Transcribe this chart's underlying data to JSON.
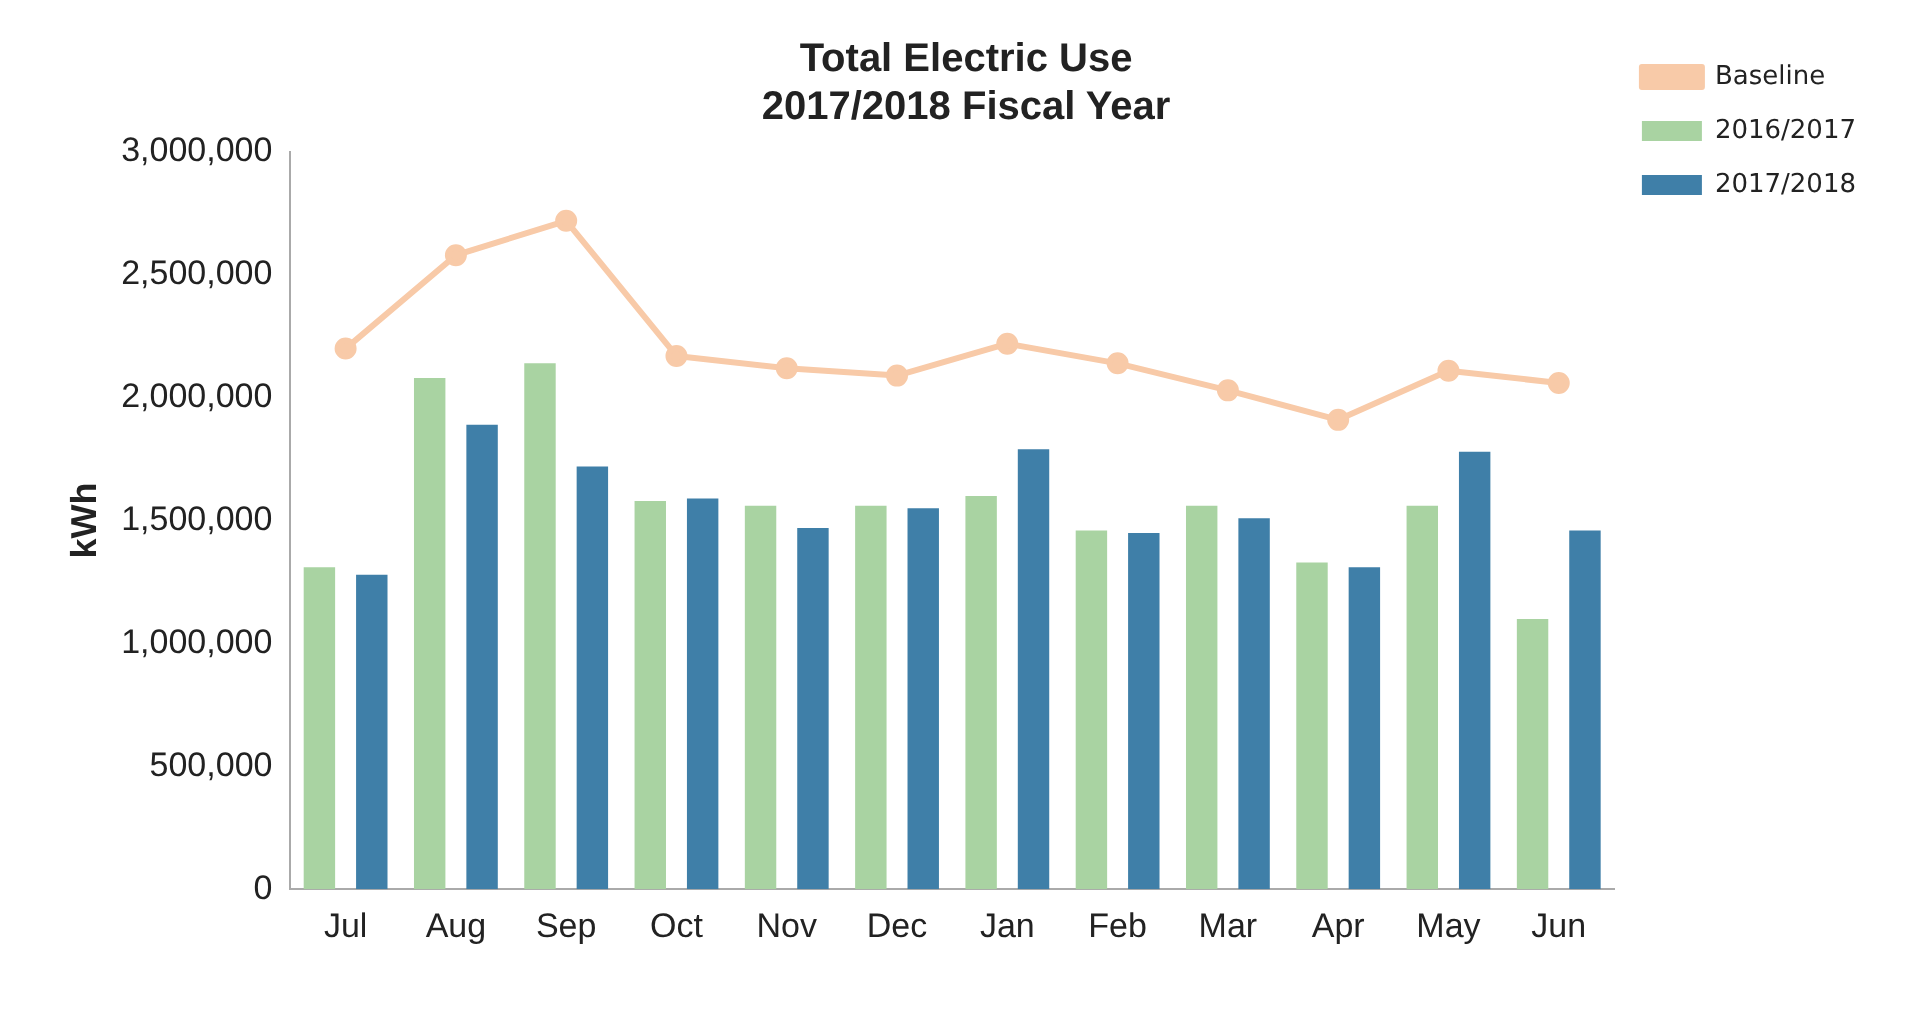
{
  "chart_data": {
    "type": "bar",
    "title": [
      "Total Electric Use",
      "2017/2018 Fiscal Year"
    ],
    "ylabel": "kWh",
    "categories": [
      "Jul",
      "Aug",
      "Sep",
      "Oct",
      "Nov",
      "Dec",
      "Jan",
      "Feb",
      "Mar",
      "Apr",
      "May",
      "Jun"
    ],
    "series": [
      {
        "name": "2016/2017",
        "color": "#a9d3a2",
        "values": [
          1310000,
          2080000,
          2140000,
          1580000,
          1560000,
          1560000,
          1600000,
          1460000,
          1560000,
          1330000,
          1560000,
          1100000
        ]
      },
      {
        "name": "2017/2018",
        "color": "#3f7fa8",
        "values": [
          1280000,
          1890000,
          1720000,
          1590000,
          1470000,
          1550000,
          1790000,
          1450000,
          1510000,
          1310000,
          1780000,
          1460000
        ]
      },
      {
        "name": "Baseline",
        "type": "line",
        "color": "#f8caa8",
        "values": [
          2200000,
          2580000,
          2720000,
          2170000,
          2120000,
          2090000,
          2220000,
          2140000,
          2030000,
          1910000,
          2110000,
          2060000
        ]
      }
    ],
    "ylim": [
      0,
      3000000
    ],
    "yticks": [
      {
        "value": 0,
        "label": "0"
      },
      {
        "value": 500000,
        "label": "500,000"
      },
      {
        "value": 1000000,
        "label": "1,000,000"
      },
      {
        "value": 1500000,
        "label": "1,500,000"
      },
      {
        "value": 2000000,
        "label": "2,000,000"
      },
      {
        "value": 2500000,
        "label": "2,500,000"
      },
      {
        "value": 3000000,
        "label": "3,000,000"
      }
    ],
    "grid": false,
    "legend": "top right",
    "marker": "circle",
    "line_style": "solid"
  }
}
